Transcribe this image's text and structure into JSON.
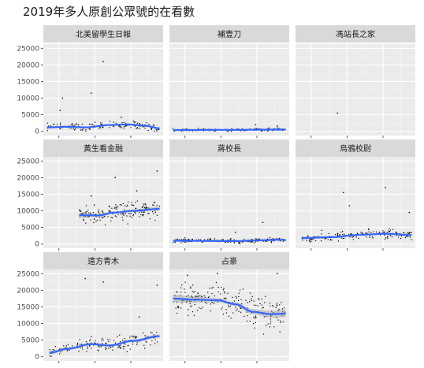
{
  "chart_data": {
    "type": "scatter",
    "title": "2019年多人原創公眾號的在看數",
    "xlabel": "",
    "ylabel": "",
    "ylim": [
      -1250,
      26250
    ],
    "yticks": [
      0,
      5000,
      10000,
      15000,
      20000,
      25000
    ],
    "ytick_labels": [
      "0",
      "5000",
      "10000",
      "15000",
      "20000",
      "25000"
    ],
    "xlim": [
      0,
      1
    ],
    "xticks": [
      0.13,
      0.43,
      0.73
    ],
    "layout": "facet_wrap 3 columns",
    "colors": {
      "panel_bg": "#ebebeb",
      "grid_major": "#ffffff",
      "strip_bg": "#d9d9d9",
      "points": "#000000",
      "smooth_line": "#3366ff",
      "smooth_band": "#999999"
    },
    "facets": [
      {
        "name": "北美留學生日報",
        "x_range": [
          0.03,
          0.97
        ],
        "n_points": 140,
        "smooth": [
          [
            0.03,
            1200
          ],
          [
            0.2,
            1400
          ],
          [
            0.35,
            1200
          ],
          [
            0.55,
            1900
          ],
          [
            0.7,
            2100
          ],
          [
            0.85,
            1700
          ],
          [
            0.97,
            900
          ]
        ],
        "spread": 1000,
        "outliers": [
          [
            0.16,
            10000
          ],
          [
            0.14,
            6300
          ],
          [
            0.5,
            21000
          ],
          [
            0.4,
            11500
          ],
          [
            0.65,
            4200
          ]
        ]
      },
      {
        "name": "補壹刀",
        "x_range": [
          0.03,
          0.97
        ],
        "n_points": 180,
        "smooth": [
          [
            0.03,
            400
          ],
          [
            0.5,
            450
          ],
          [
            0.97,
            550
          ]
        ],
        "spread": 300,
        "outliers": [
          [
            0.72,
            2000
          ],
          [
            0.9,
            1600
          ]
        ]
      },
      {
        "name": "馮站長之家",
        "x_range": [
          0.35,
          0.36
        ],
        "n_points": 0,
        "smooth": [],
        "spread": 0,
        "outliers": [
          [
            0.35,
            5500
          ]
        ]
      },
      {
        "name": "黃生看金融",
        "x_range": [
          0.3,
          0.97
        ],
        "n_points": 180,
        "smooth": [
          [
            0.3,
            8700
          ],
          [
            0.45,
            8600
          ],
          [
            0.6,
            9500
          ],
          [
            0.75,
            10000
          ],
          [
            0.97,
            10600
          ]
        ],
        "spread": 2200,
        "outliers": [
          [
            0.95,
            22000
          ],
          [
            0.78,
            16000
          ],
          [
            0.6,
            20000
          ],
          [
            0.4,
            14500
          ]
        ]
      },
      {
        "name": "蔣校長",
        "x_range": [
          0.03,
          0.97
        ],
        "n_points": 190,
        "smooth": [
          [
            0.03,
            1000
          ],
          [
            0.5,
            900
          ],
          [
            0.97,
            1300
          ]
        ],
        "spread": 500,
        "outliers": [
          [
            0.78,
            6500
          ],
          [
            0.55,
            3500
          ]
        ]
      },
      {
        "name": "烏鴉校尉",
        "x_range": [
          0.05,
          0.97
        ],
        "n_points": 170,
        "smooth": [
          [
            0.05,
            1800
          ],
          [
            0.3,
            2100
          ],
          [
            0.55,
            2800
          ],
          [
            0.75,
            3100
          ],
          [
            0.97,
            2700
          ]
        ],
        "spread": 1100,
        "outliers": [
          [
            0.4,
            15500
          ],
          [
            0.45,
            11500
          ],
          [
            0.75,
            17000
          ],
          [
            0.95,
            9500
          ]
        ]
      },
      {
        "name": "遠方青木",
        "x_range": [
          0.05,
          0.97
        ],
        "n_points": 160,
        "smooth": [
          [
            0.05,
            1200
          ],
          [
            0.2,
            2400
          ],
          [
            0.4,
            3800
          ],
          [
            0.55,
            3400
          ],
          [
            0.75,
            4800
          ],
          [
            0.97,
            6200
          ]
        ],
        "spread": 1800,
        "outliers": [
          [
            0.35,
            23500
          ],
          [
            0.5,
            22500
          ],
          [
            0.95,
            21500
          ],
          [
            0.8,
            12000
          ]
        ]
      },
      {
        "name": "占豪",
        "x_range": [
          0.03,
          0.97
        ],
        "n_points": 220,
        "smooth": [
          [
            0.03,
            17500
          ],
          [
            0.2,
            17200
          ],
          [
            0.4,
            17000
          ],
          [
            0.55,
            15800
          ],
          [
            0.7,
            13500
          ],
          [
            0.85,
            12800
          ],
          [
            0.97,
            13000
          ]
        ],
        "spread": 4000,
        "outliers": [
          [
            0.15,
            24500
          ],
          [
            0.4,
            25000
          ],
          [
            0.9,
            25000
          ]
        ]
      }
    ]
  }
}
